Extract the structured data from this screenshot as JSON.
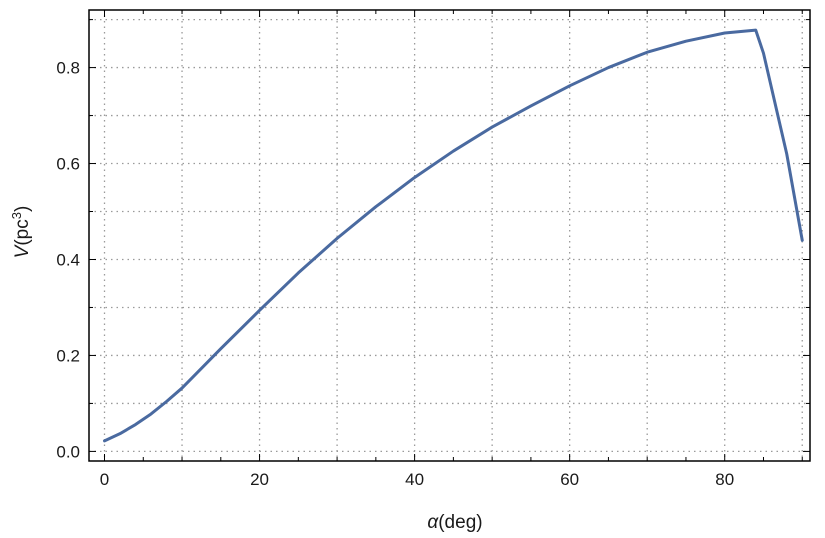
{
  "chart_data": {
    "type": "line",
    "title": "",
    "xlabel": {
      "symbol": "α",
      "unit": "(deg)"
    },
    "ylabel": {
      "symbol": "V",
      "unit_base": "(pc",
      "unit_exp": "3",
      "unit_close": ")"
    },
    "xlim": [
      -2,
      91
    ],
    "ylim": [
      -0.02,
      0.92
    ],
    "grid": true,
    "x_ticks": [
      0,
      20,
      40,
      60,
      80
    ],
    "x_tick_labels": [
      "0",
      "20",
      "40",
      "60",
      "80"
    ],
    "y_ticks": [
      0.0,
      0.2,
      0.4,
      0.6,
      0.8
    ],
    "y_tick_labels": [
      "0.0",
      "0.2",
      "0.4",
      "0.6",
      "0.8"
    ],
    "series": [
      {
        "color": "#4a6aa0",
        "x": [
          0,
          2,
          4,
          6,
          8,
          10,
          15,
          20,
          25,
          30,
          35,
          40,
          45,
          50,
          55,
          60,
          65,
          70,
          75,
          80,
          84,
          85,
          88,
          90
        ],
        "y": [
          0.022,
          0.037,
          0.056,
          0.078,
          0.104,
          0.132,
          0.214,
          0.294,
          0.372,
          0.444,
          0.51,
          0.571,
          0.626,
          0.676,
          0.72,
          0.762,
          0.8,
          0.832,
          0.855,
          0.872,
          0.878,
          0.83,
          0.62,
          0.44
        ]
      }
    ]
  }
}
